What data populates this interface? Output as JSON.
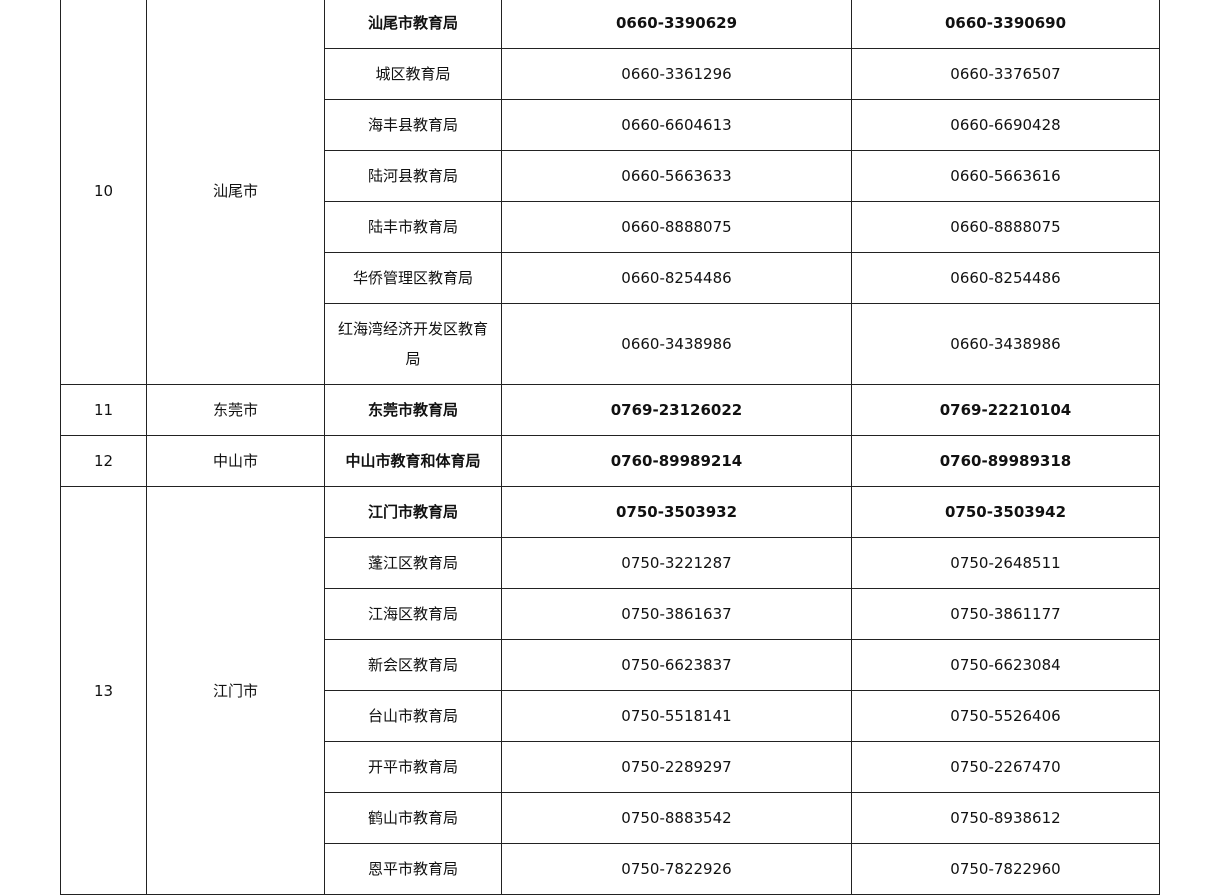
{
  "groups": [
    {
      "num": "10",
      "city": "汕尾市",
      "rows": [
        {
          "office": "汕尾市教育局",
          "phone": "0660-3390629",
          "fax": "0660-3390690",
          "bold": true
        },
        {
          "office": "城区教育局",
          "phone": "0660-3361296",
          "fax": "0660-3376507"
        },
        {
          "office": "海丰县教育局",
          "phone": "0660-6604613",
          "fax": "0660-6690428"
        },
        {
          "office": "陆河县教育局",
          "phone": "0660-5663633",
          "fax": "0660-5663616"
        },
        {
          "office": "陆丰市教育局",
          "phone": "0660-8888075",
          "fax": "0660-8888075"
        },
        {
          "office": "华侨管理区教育局",
          "phone": "0660-8254486",
          "fax": "0660-8254486"
        },
        {
          "office": "红海湾经济开发区教育局",
          "phone": "0660-3438986",
          "fax": "0660-3438986",
          "tall": true
        }
      ]
    },
    {
      "num": "11",
      "city": "东莞市",
      "rows": [
        {
          "office": "东莞市教育局",
          "phone": "0769-23126022",
          "fax": "0769-22210104",
          "bold": true
        }
      ]
    },
    {
      "num": "12",
      "city": "中山市",
      "rows": [
        {
          "office": "中山市教育和体育局",
          "phone": "0760-89989214",
          "fax": "0760-89989318",
          "bold": true
        }
      ]
    },
    {
      "num": "13",
      "city": "江门市",
      "rows": [
        {
          "office": "江门市教育局",
          "phone": "0750-3503932",
          "fax": "0750-3503942",
          "bold": true
        },
        {
          "office": "蓬江区教育局",
          "phone": "0750-3221287",
          "fax": "0750-2648511"
        },
        {
          "office": "江海区教育局",
          "phone": "0750-3861637",
          "fax": "0750-3861177"
        },
        {
          "office": "新会区教育局",
          "phone": "0750-6623837",
          "fax": "0750-6623084"
        },
        {
          "office": "台山市教育局",
          "phone": "0750-5518141",
          "fax": "0750-5526406"
        },
        {
          "office": "开平市教育局",
          "phone": "0750-2289297",
          "fax": "0750-2267470"
        },
        {
          "office": "鹤山市教育局",
          "phone": "0750-8883542",
          "fax": "0750-8938612"
        },
        {
          "office": "恩平市教育局",
          "phone": "0750-7822926",
          "fax": "0750-7822960"
        }
      ]
    }
  ]
}
